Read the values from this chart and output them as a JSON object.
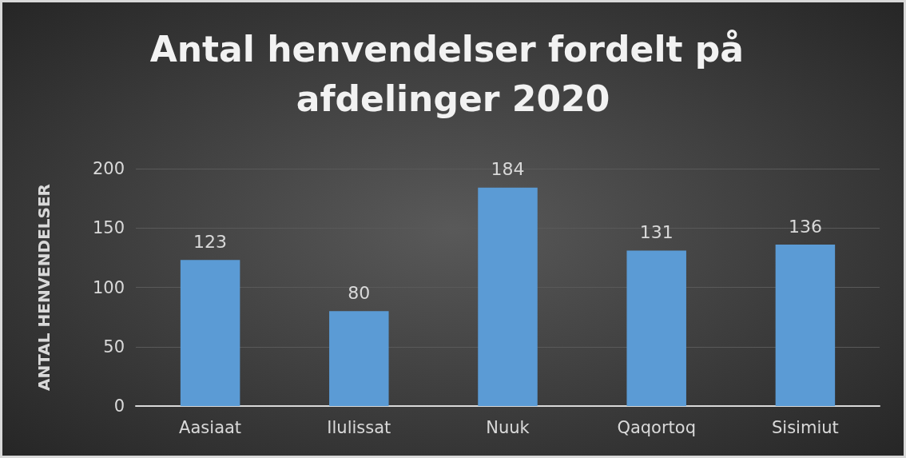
{
  "chart_data": {
    "type": "bar",
    "title": "Antal henvendelser fordelt på afdelinger 2020",
    "ylabel": "ANTAL HENVENDELSER",
    "categories": [
      "Aasiaat",
      "Ilulissat",
      "Nuuk",
      "Qaqortoq",
      "Sisimiut"
    ],
    "values": [
      123,
      80,
      184,
      131,
      136
    ],
    "color": "#5b9bd5",
    "ylim": [
      0,
      200
    ],
    "yticks": [
      0,
      50,
      100,
      150,
      200
    ],
    "grid": "y",
    "data_labels": true
  }
}
